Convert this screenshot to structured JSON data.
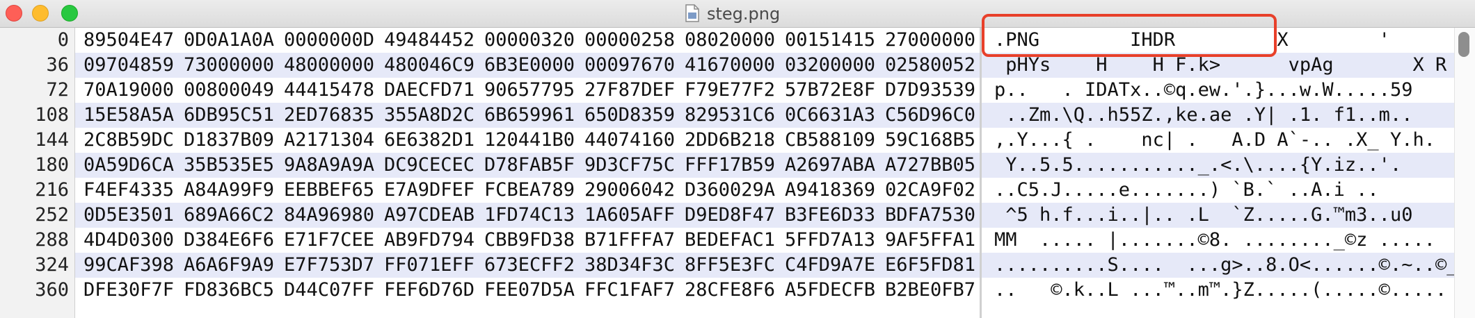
{
  "window": {
    "title": "steg.png",
    "file_icon": "document-icon"
  },
  "rows": [
    {
      "offset": "0",
      "hex": [
        "89504E47",
        "0D0A1A0A",
        "0000000D",
        "49484452",
        "00000320",
        "00000258",
        "08020000",
        "00151415",
        "27000000"
      ],
      "ascii": ".PNG        IHDR         X        '"
    },
    {
      "offset": "36",
      "hex": [
        "09704859",
        "73000000",
        "48000000",
        "480046C9",
        "6B3E0000",
        "00097670",
        "41670000",
        "03200000",
        "02580052"
      ],
      "ascii": " pHYs    H    H F.k>      vpAg       X R"
    },
    {
      "offset": "72",
      "hex": [
        "70A19000",
        "00800049",
        "44415478",
        "DAECFD71",
        "90657795",
        "27F87DEF",
        "F79E77F2",
        "57B72E8F",
        "D7D93539"
      ],
      "ascii": "p..   . IDATx..©q.ew.'.}...w.W.....59"
    },
    {
      "offset": "108",
      "hex": [
        "15E58A5A",
        "6DB95C51",
        "2ED76835",
        "355A8D2C",
        "6B659961",
        "650D8359",
        "829531C6",
        "0C6631A3",
        "C56D96C0"
      ],
      "ascii": " ..Zm.\\Q..h55Z.,ke.ae .Y| .1. f1..m.."
    },
    {
      "offset": "144",
      "hex": [
        "2C8B59DC",
        "D1837B09",
        "A2171304",
        "6E6382D1",
        "120441B0",
        "44074160",
        "2DD6B218",
        "CB588109",
        "59C168B5"
      ],
      "ascii": ",.Y...{ .    nc| .   A.D A`-.. .X_ Y.h."
    },
    {
      "offset": "180",
      "hex": [
        "0A59D6CA",
        "35B535E5",
        "9A8A9A9A",
        "DC9CECEC",
        "D78FAB5F",
        "9D3CF75C",
        "FFF17B59",
        "A2697ABA",
        "A727BB05"
      ],
      "ascii": " Y..5.5..........._.<.\\....{Y.iz..'."
    },
    {
      "offset": "216",
      "hex": [
        "F4EF4335",
        "A84A99F9",
        "EEBBEF65",
        "E7A9DFEF",
        "FCBEA789",
        "29006042",
        "D360029A",
        "A9418369",
        "02CA9F02"
      ],
      "ascii": "..C5.J.....e.......) `B.` ..A.i .."
    },
    {
      "offset": "252",
      "hex": [
        "0D5E3501",
        "689A66C2",
        "84A96980",
        "A97CDEAB",
        "1FD74C13",
        "1A605AFF",
        "D9ED8F47",
        "B3FE6D33",
        "BDFA7530"
      ],
      "ascii": " ^5 h.f...i..|.. .L  `Z.....G.™m3..u0"
    },
    {
      "offset": "288",
      "hex": [
        "4D4D0300",
        "D384E6F6",
        "E71F7CEE",
        "AB9FD794",
        "CBB9FD38",
        "B71FFFA7",
        "BEDEFAC1",
        "5FFD7A13",
        "9AF5FFA1"
      ],
      "ascii": "MM  ..... |.......©8. ........_©z ....."
    },
    {
      "offset": "324",
      "hex": [
        "99CAF398",
        "A6A6F9A9",
        "E7F753D7",
        "FF071EFF",
        "673ECFF2",
        "38D34F3C",
        "8FF5E3FC",
        "C4FD9A7E",
        "E6F5FD81"
      ],
      "ascii": "..........S....  ...g>..8.O<......©.~..©_"
    },
    {
      "offset": "360",
      "hex": [
        "DFE30F7F",
        "FD836BC5",
        "D44C07FF",
        "FEF6D76D",
        "FEE07D5A",
        "FFC1FAF7",
        "28CFE8F6",
        "A5FDECFB",
        "B2BE0FB7"
      ],
      "ascii": "..   ©.k..L ...™..m™.}Z.....(.....©....."
    }
  ],
  "colors": {
    "highlight": "#e8402a",
    "row_alt": "#e6e9f8"
  }
}
